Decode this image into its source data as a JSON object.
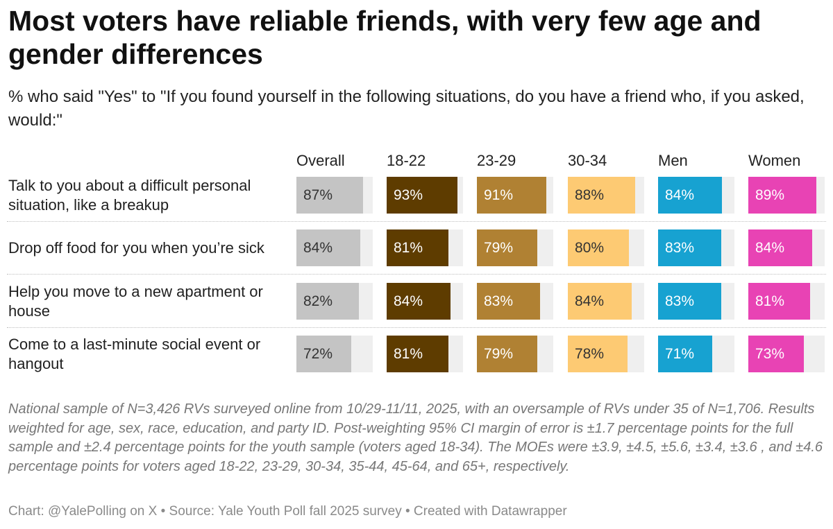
{
  "title": "Most voters have reliable friends, with very few age and gender differences",
  "subtitle": "% who said \"Yes\" to \"If you found yourself in the following situations, do you have a friend who, if you asked, would:\"",
  "chart_data": {
    "type": "table",
    "columns": [
      {
        "name": "Overall",
        "color": "#c4c4c4",
        "text_color": "#333333"
      },
      {
        "name": "18-22",
        "color": "#5e3c00",
        "text_color": "#ffffff"
      },
      {
        "name": "23-29",
        "color": "#b08133",
        "text_color": "#ffffff"
      },
      {
        "name": "30-34",
        "color": "#fdca73",
        "text_color": "#333333"
      },
      {
        "name": "Men",
        "color": "#17a2d1",
        "text_color": "#ffffff"
      },
      {
        "name": "Women",
        "color": "#e843b4",
        "text_color": "#ffffff"
      }
    ],
    "rows": [
      {
        "label": "Talk to you about a difficult personal situation, like a breakup",
        "values": [
          87,
          93,
          91,
          88,
          84,
          89
        ],
        "labels": [
          "87%",
          "93%",
          "91%",
          "88%",
          "84%",
          "89%"
        ]
      },
      {
        "label": "Drop off food for you when you’re sick",
        "values": [
          84,
          81,
          79,
          80,
          83,
          84
        ],
        "labels": [
          "84%",
          "81%",
          "79%",
          "80%",
          "83%",
          "84%"
        ]
      },
      {
        "label": "Help you move to a new apartment or house",
        "values": [
          82,
          84,
          83,
          84,
          83,
          81
        ],
        "labels": [
          "82%",
          "84%",
          "83%",
          "84%",
          "83%",
          "81%"
        ]
      },
      {
        "label": "Come to a last-minute social event or hangout",
        "values": [
          72,
          81,
          79,
          78,
          71,
          73
        ],
        "labels": [
          "72%",
          "81%",
          "79%",
          "78%",
          "71%",
          "73%"
        ]
      }
    ],
    "value_max": 100
  },
  "notes": "National sample of N=3,426 RVs surveyed online from 10/29-11/11, 2025, with an oversample of RVs under 35 of N=1,706. Results weighted for age, sex, race, education, and party ID. Post-weighting 95% CI margin of error is ±1.7 percentage points for the full sample and ±2.4 percentage points for the youth sample (voters aged 18-34). The MOEs were ±3.9, ±4.5, ±5.6, ±3.4, ±3.6 , and ±4.6 percentage points for voters aged 18-22, 23-29, 30-34, 35-44, 45-64, and 65+, respectively.",
  "credit": "Chart: @YalePolling on X • Source: Yale Youth Poll fall 2025 survey • Created with Datawrapper"
}
